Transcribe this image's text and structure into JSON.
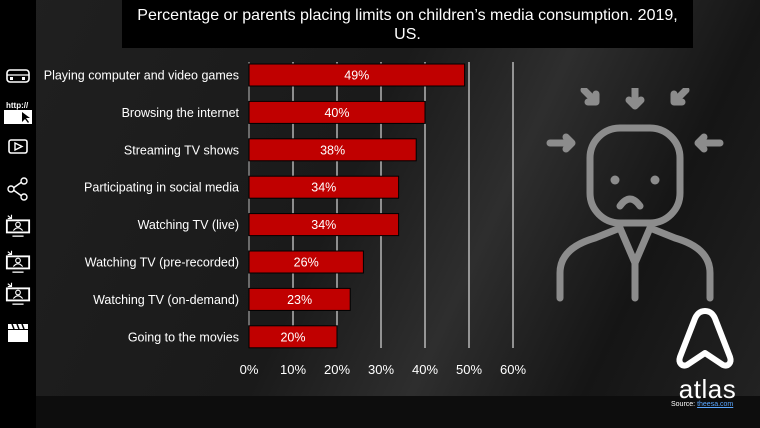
{
  "title": "Percentage or parents placing limits on children’s media consumption. 2019, US.",
  "brand": "atlas",
  "source": {
    "label": "Source:",
    "link_text": "theesa.com"
  },
  "side_icons": [
    "gamepad-icon",
    "browser-url-icon",
    "play-video-icon",
    "share-icon",
    "tv-live-icon",
    "tv-recorded-icon",
    "tv-on-demand-icon",
    "clapperboard-icon"
  ],
  "colors": {
    "bar": "#c00000",
    "background": "#1c1c1c",
    "text": "#ffffff",
    "grid": "#ffffff"
  },
  "chart_data": {
    "type": "bar",
    "orientation": "horizontal",
    "categories": [
      "Playing computer and video games",
      "Browsing the internet",
      "Streaming TV shows",
      "Participating in social media",
      "Watching TV (live)",
      "Watching TV (pre-recorded)",
      "Watching TV (on-demand)",
      "Going to the movies"
    ],
    "values": [
      49,
      40,
      38,
      34,
      34,
      26,
      23,
      20
    ],
    "data_labels": [
      "49%",
      "40%",
      "38%",
      "34%",
      "34%",
      "26%",
      "23%",
      "20%"
    ],
    "xlim": [
      0,
      60
    ],
    "xticks": [
      "0%",
      "10%",
      "20%",
      "30%",
      "40%",
      "50%",
      "60%"
    ],
    "grid": true
  }
}
